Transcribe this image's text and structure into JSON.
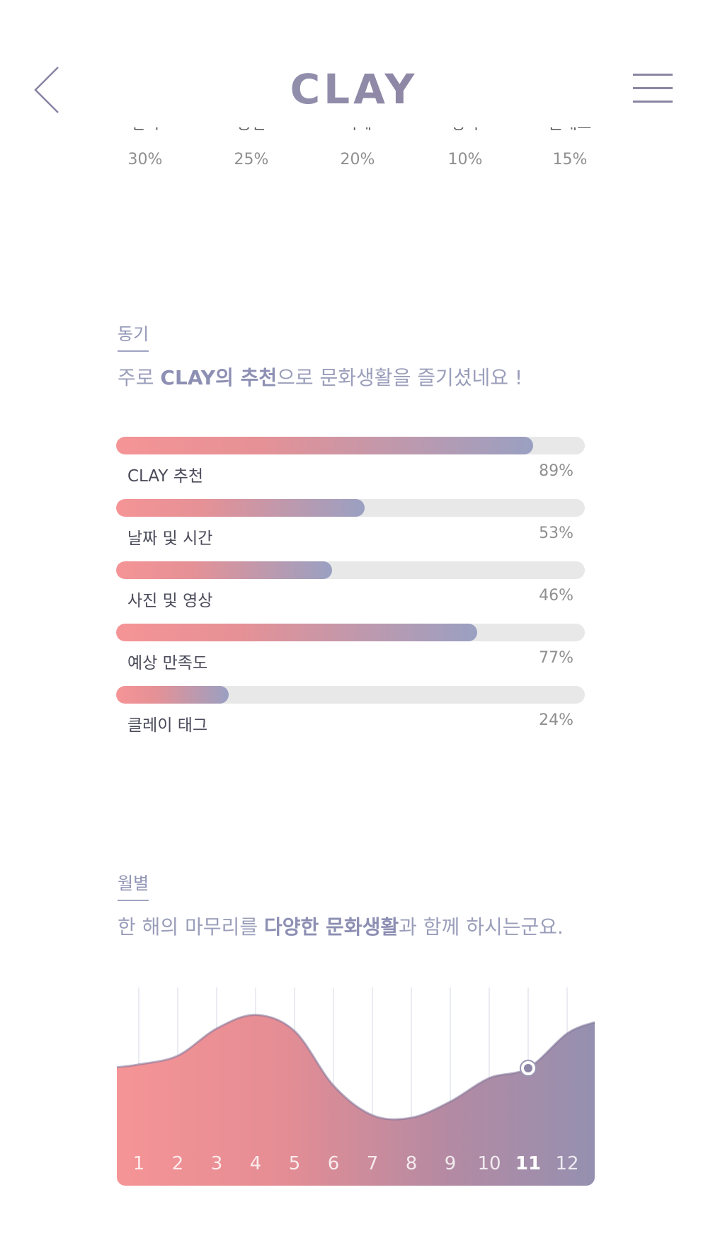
{
  "header": {
    "logo": "CLAY"
  },
  "genres": [
    {
      "label": "전시",
      "percent": "30%"
    },
    {
      "label": "공연",
      "percent": "25%"
    },
    {
      "label": "축제",
      "percent": "20%"
    },
    {
      "label": "영화",
      "percent": "10%"
    },
    {
      "label": "클래스",
      "percent": "15%"
    }
  ],
  "motive": {
    "tag": "동기",
    "title_pre": "주로 ",
    "title_bold": "CLAY의 추천",
    "title_post": "으로 문화생활을 즐기셨네요 !",
    "bars": [
      {
        "label": "CLAY 추천",
        "value": 89,
        "text": "89%"
      },
      {
        "label": "날짜 및 시간",
        "value": 53,
        "text": "53%"
      },
      {
        "label": "사진 및 영상",
        "value": 46,
        "text": "46%"
      },
      {
        "label": "예상 만족도",
        "value": 77,
        "text": "77%"
      },
      {
        "label": "클레이 태그",
        "value": 24,
        "text": "24%"
      }
    ]
  },
  "monthly": {
    "tag": "월별",
    "title_pre": "한 해의 마무리를 ",
    "title_bold": "다양한 문화생활",
    "title_post": "과 함께 하시는군요.",
    "selected_month": "11"
  },
  "colors": {
    "accent_pink": "#f59496",
    "accent_purple": "#9aa0c2",
    "selected_dot": "#8d86a6"
  },
  "chart_data": {
    "type": "area",
    "categories": [
      "1",
      "2",
      "3",
      "4",
      "5",
      "6",
      "7",
      "8",
      "9",
      "10",
      "11",
      "12"
    ],
    "values": [
      55,
      62,
      84,
      95,
      82,
      38,
      14,
      12,
      25,
      44,
      52,
      80
    ],
    "ylim": [
      0,
      100
    ],
    "highlight_index": 10
  }
}
